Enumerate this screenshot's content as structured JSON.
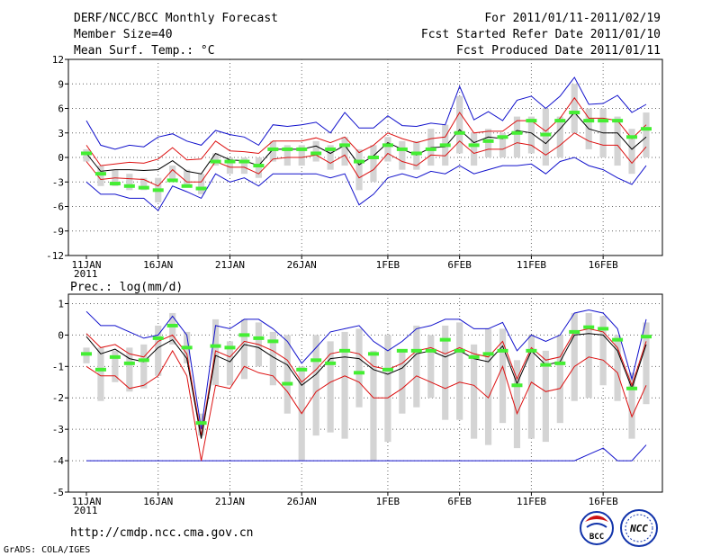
{
  "header": {
    "title": "DERF/NCC/BCC Monthly Forecast",
    "member_size": "Member Size=40",
    "variable": "Mean Surf. Temp.: °C",
    "period": "For 2011/01/11-2011/02/19",
    "started": "Fcst Started Refer Date 2011/01/10",
    "produced": "Fcst Produced Date 2011/01/11"
  },
  "footer": {
    "url": "http://cmdp.ncc.cma.gov.cn",
    "grads": "GrADS: COLA/IGES",
    "logo_bcc": "BCC",
    "logo_ncc": "NCC"
  },
  "colors": {
    "mean": "#000000",
    "band": "#dd1111",
    "range": "#1111cc",
    "box": "#d4d4d4",
    "marker": "#44ee33"
  },
  "chart_data": [
    {
      "type": "line",
      "title": "Mean Surf. Temp.: °C",
      "x": [
        "1/11",
        "1/12",
        "1/13",
        "1/14",
        "1/15",
        "1/16",
        "1/17",
        "1/18",
        "1/19",
        "1/20",
        "1/21",
        "1/22",
        "1/23",
        "1/24",
        "1/25",
        "1/26",
        "1/27",
        "1/28",
        "1/29",
        "1/30",
        "1/31",
        "2/1",
        "2/2",
        "2/3",
        "2/4",
        "2/5",
        "2/6",
        "2/7",
        "2/8",
        "2/9",
        "2/10",
        "2/11",
        "2/12",
        "2/13",
        "2/14",
        "2/15",
        "2/16",
        "2/17",
        "2/18",
        "2/19"
      ],
      "xticks": [
        {
          "i": 0,
          "label": "11JAN"
        },
        {
          "i": 5,
          "label": "16JAN"
        },
        {
          "i": 10,
          "label": "21JAN"
        },
        {
          "i": 15,
          "label": "26JAN"
        },
        {
          "i": 21,
          "label": "1FEB"
        },
        {
          "i": 26,
          "label": "6FEB"
        },
        {
          "i": 31,
          "label": "11FEB"
        },
        {
          "i": 36,
          "label": "16FEB"
        }
      ],
      "xyear": "2011",
      "ylim": [
        -12,
        12
      ],
      "yticks": [
        -12,
        -9,
        -6,
        -3,
        0,
        3,
        6,
        9,
        12
      ],
      "series": [
        {
          "name": "max",
          "values": [
            4.5,
            1.5,
            1.0,
            1.5,
            1.3,
            2.5,
            2.9,
            2.0,
            1.5,
            3.3,
            2.8,
            2.5,
            1.5,
            4.0,
            3.8,
            4.0,
            4.3,
            3.0,
            5.5,
            3.6,
            3.6,
            5.1,
            3.9,
            3.8,
            4.2,
            4.0,
            8.7,
            4.6,
            5.6,
            4.5,
            7.0,
            7.5,
            6.0,
            7.5,
            9.8,
            6.5,
            6.6,
            7.6,
            5.5,
            6.5
          ]
        },
        {
          "name": "upper",
          "values": [
            1.5,
            -1.0,
            -0.8,
            -0.6,
            -0.7,
            -0.2,
            1.2,
            -0.3,
            -0.2,
            2.0,
            0.8,
            0.7,
            0.5,
            2.0,
            2.0,
            2.0,
            2.4,
            1.8,
            2.5,
            0.6,
            1.5,
            3.0,
            2.3,
            1.8,
            2.3,
            2.5,
            5.5,
            3.0,
            3.2,
            3.2,
            4.5,
            4.5,
            3.2,
            4.8,
            7.3,
            4.8,
            4.8,
            4.5,
            2.3,
            4.0
          ]
        },
        {
          "name": "mean",
          "values": [
            0.5,
            -1.7,
            -1.5,
            -1.5,
            -1.6,
            -1.5,
            -0.4,
            -1.7,
            -2.0,
            0.5,
            -0.3,
            -0.4,
            -1.0,
            1.0,
            1.0,
            1.0,
            1.4,
            0.5,
            1.5,
            -0.9,
            0.2,
            1.8,
            1.0,
            0.3,
            1.2,
            1.3,
            3.4,
            1.8,
            2.5,
            2.3,
            3.3,
            3.0,
            1.7,
            3.5,
            5.5,
            3.5,
            3.0,
            3.0,
            1.0,
            2.5
          ]
        },
        {
          "name": "lower",
          "values": [
            -0.5,
            -2.7,
            -2.5,
            -2.6,
            -2.7,
            -3.5,
            -1.5,
            -3.0,
            -3.0,
            -0.5,
            -1.2,
            -1.2,
            -2.0,
            -0.2,
            0.0,
            0.0,
            0.3,
            -0.7,
            0.3,
            -2.5,
            -1.5,
            0.5,
            -0.5,
            -1.0,
            0.3,
            0.2,
            2.0,
            0.5,
            1.0,
            1.0,
            1.8,
            1.5,
            0.3,
            1.5,
            3.0,
            2.0,
            1.5,
            1.5,
            -0.7,
            1.3
          ]
        },
        {
          "name": "min",
          "values": [
            -3.0,
            -4.5,
            -4.5,
            -5.0,
            -5.0,
            -6.5,
            -3.5,
            -4.2,
            -5.0,
            -2.0,
            -3.0,
            -2.5,
            -3.5,
            -2.0,
            -2.0,
            -2.0,
            -2.0,
            -2.5,
            -2.0,
            -5.8,
            -4.5,
            -2.5,
            -2.0,
            -2.5,
            -1.7,
            -2.0,
            -1.0,
            -2.0,
            -1.5,
            -1.0,
            -1.0,
            -0.8,
            -2.0,
            -0.5,
            0.0,
            -1.0,
            -1.5,
            -2.5,
            -3.3,
            -1.0
          ]
        },
        {
          "name": "box_low",
          "values": [
            -0.5,
            -3.5,
            -3.5,
            -4.0,
            -4.0,
            -5.5,
            -3.0,
            -3.5,
            -4.5,
            -1.0,
            -2.0,
            -2.0,
            -2.5,
            -0.5,
            -1.0,
            -1.0,
            -0.5,
            -1.5,
            -1.0,
            -4.0,
            -3.0,
            -0.5,
            -1.5,
            -1.5,
            -1.0,
            -1.0,
            0.5,
            -1.0,
            0.0,
            0.0,
            0.0,
            0.5,
            -1.0,
            0.0,
            3.0,
            1.0,
            0.0,
            -1.0,
            -2.0,
            0.0
          ]
        },
        {
          "name": "box_high",
          "values": [
            1.0,
            -1.0,
            -1.5,
            -2.0,
            -2.5,
            -2.5,
            -1.0,
            -1.5,
            -2.0,
            0.5,
            0.0,
            0.0,
            0.0,
            2.0,
            1.5,
            1.5,
            2.0,
            1.5,
            2.5,
            1.0,
            1.5,
            2.5,
            2.0,
            2.0,
            3.5,
            4.0,
            7.5,
            3.0,
            3.5,
            3.0,
            5.0,
            5.0,
            6.0,
            5.0,
            9.0,
            6.0,
            6.0,
            5.0,
            3.5,
            5.5
          ]
        },
        {
          "name": "marker",
          "values": [
            0.5,
            -2.0,
            -3.2,
            -3.5,
            -3.7,
            -4.0,
            -2.8,
            -3.5,
            -3.8,
            -0.5,
            -0.5,
            -0.5,
            -1.0,
            1.0,
            1.0,
            1.0,
            0.5,
            1.0,
            1.5,
            -0.5,
            0.0,
            1.5,
            1.0,
            0.5,
            1.0,
            1.5,
            3.0,
            1.5,
            2.0,
            2.5,
            3.0,
            4.5,
            2.8,
            4.5,
            5.5,
            4.5,
            4.5,
            4.5,
            2.5,
            3.5
          ]
        }
      ]
    },
    {
      "type": "line",
      "title": "Prec.: log(mm/d)",
      "x": [
        "1/11",
        "1/12",
        "1/13",
        "1/14",
        "1/15",
        "1/16",
        "1/17",
        "1/18",
        "1/19",
        "1/20",
        "1/21",
        "1/22",
        "1/23",
        "1/24",
        "1/25",
        "1/26",
        "1/27",
        "1/28",
        "1/29",
        "1/30",
        "1/31",
        "2/1",
        "2/2",
        "2/3",
        "2/4",
        "2/5",
        "2/6",
        "2/7",
        "2/8",
        "2/9",
        "2/10",
        "2/11",
        "2/12",
        "2/13",
        "2/14",
        "2/15",
        "2/16",
        "2/17",
        "2/18",
        "2/19"
      ],
      "xticks": [
        {
          "i": 0,
          "label": "11JAN"
        },
        {
          "i": 5,
          "label": "16JAN"
        },
        {
          "i": 10,
          "label": "21JAN"
        },
        {
          "i": 15,
          "label": "26JAN"
        },
        {
          "i": 21,
          "label": "1FEB"
        },
        {
          "i": 26,
          "label": "6FEB"
        },
        {
          "i": 31,
          "label": "11FEB"
        },
        {
          "i": 36,
          "label": "16FEB"
        }
      ],
      "xyear": "2011",
      "ylim": [
        -5,
        1.3
      ],
      "yticks": [
        -5,
        -4,
        -3,
        -2,
        -1,
        0,
        1
      ],
      "series": [
        {
          "name": "max",
          "values": [
            0.75,
            0.3,
            0.3,
            0.1,
            -0.1,
            0.0,
            0.6,
            0.0,
            -3.0,
            0.3,
            0.2,
            0.5,
            0.5,
            0.2,
            -0.2,
            -0.9,
            -0.4,
            0.1,
            0.2,
            0.3,
            -0.2,
            -0.5,
            -0.2,
            0.2,
            0.3,
            0.5,
            0.5,
            0.2,
            0.2,
            0.4,
            -0.5,
            0.0,
            -0.2,
            0.0,
            0.7,
            0.8,
            0.7,
            0.2,
            -1.4,
            0.5
          ]
        },
        {
          "name": "upper",
          "values": [
            0.05,
            -0.4,
            -0.3,
            -0.6,
            -0.7,
            -0.2,
            0.0,
            -0.6,
            -3.2,
            -0.5,
            -0.7,
            -0.2,
            -0.3,
            -0.5,
            -0.8,
            -1.5,
            -1.1,
            -0.6,
            -0.5,
            -0.6,
            -1.0,
            -1.1,
            -0.9,
            -0.5,
            -0.4,
            -0.6,
            -0.4,
            -0.6,
            -0.7,
            -0.2,
            -1.4,
            -0.4,
            -0.8,
            -0.7,
            0.1,
            0.2,
            0.1,
            -0.4,
            -1.6,
            -0.2
          ]
        },
        {
          "name": "mean",
          "values": [
            -0.05,
            -0.6,
            -0.45,
            -0.75,
            -0.85,
            -0.4,
            -0.15,
            -0.75,
            -3.3,
            -0.65,
            -0.85,
            -0.3,
            -0.4,
            -0.7,
            -0.95,
            -1.6,
            -1.25,
            -0.75,
            -0.7,
            -0.75,
            -1.1,
            -1.25,
            -1.05,
            -0.6,
            -0.5,
            -0.7,
            -0.5,
            -0.75,
            -0.85,
            -0.35,
            -1.55,
            -0.5,
            -0.95,
            -0.85,
            0.0,
            0.05,
            0.0,
            -0.5,
            -1.7,
            -0.3
          ]
        },
        {
          "name": "lower",
          "values": [
            -1.0,
            -1.3,
            -1.3,
            -1.7,
            -1.6,
            -1.3,
            -0.5,
            -1.3,
            -4.0,
            -1.6,
            -1.7,
            -1.0,
            -1.2,
            -1.3,
            -1.8,
            -2.5,
            -1.8,
            -1.5,
            -1.3,
            -1.5,
            -2.0,
            -2.0,
            -1.7,
            -1.3,
            -1.5,
            -1.7,
            -1.5,
            -1.6,
            -2.0,
            -1.0,
            -2.5,
            -1.5,
            -1.8,
            -1.7,
            -1.0,
            -0.7,
            -0.8,
            -1.2,
            -2.6,
            -1.6
          ]
        },
        {
          "name": "min",
          "values": [
            -4.0,
            -4.0,
            -4.0,
            -4.0,
            -4.0,
            -4.0,
            -4.0,
            -4.0,
            -4.0,
            -4.0,
            -4.0,
            -4.0,
            -4.0,
            -4.0,
            -4.0,
            -4.0,
            -4.0,
            -4.0,
            -4.0,
            -4.0,
            -4.0,
            -4.0,
            -4.0,
            -4.0,
            -4.0,
            -4.0,
            -4.0,
            -4.0,
            -4.0,
            -4.0,
            -4.0,
            -4.0,
            -4.0,
            -4.0,
            -4.0,
            -3.8,
            -3.6,
            -4.0,
            -4.0,
            -3.5
          ]
        },
        {
          "name": "box_low",
          "values": [
            -0.9,
            -2.1,
            -1.5,
            -1.8,
            -1.7,
            -1.3,
            -0.3,
            -0.9,
            -3.2,
            -1.6,
            -1.6,
            -1.4,
            -1.0,
            -1.6,
            -2.5,
            -4.0,
            -3.2,
            -3.1,
            -3.3,
            -2.3,
            -4.0,
            -3.4,
            -2.5,
            -2.3,
            -2.0,
            -2.7,
            -2.7,
            -3.3,
            -3.5,
            -2.8,
            -3.6,
            -3.3,
            -3.4,
            -2.8,
            -2.1,
            -2.0,
            -1.6,
            -2.1,
            -3.3,
            -2.2
          ]
        },
        {
          "name": "box_high",
          "values": [
            -0.4,
            -0.4,
            -0.5,
            -0.4,
            -0.3,
            0.3,
            0.7,
            0.1,
            -2.5,
            0.5,
            -0.2,
            0.5,
            0.4,
            0.1,
            0.0,
            -1.0,
            0.0,
            -0.2,
            0.1,
            0.2,
            -0.5,
            0.0,
            -0.5,
            0.3,
            0.0,
            0.3,
            0.4,
            -0.3,
            0.2,
            0.2,
            -0.8,
            0.0,
            -0.5,
            0.0,
            0.7,
            0.7,
            0.6,
            0.0,
            -1.2,
            0.4
          ]
        },
        {
          "name": "marker",
          "values": [
            -0.6,
            -1.1,
            -0.7,
            -0.9,
            -0.8,
            -0.1,
            0.3,
            -0.4,
            -2.8,
            -0.35,
            -0.4,
            0.0,
            -0.1,
            -0.2,
            -1.55,
            -1.1,
            -0.8,
            -0.9,
            -0.5,
            -1.2,
            -0.6,
            -1.1,
            -0.5,
            -0.5,
            -0.5,
            -0.15,
            -0.5,
            -0.7,
            -0.6,
            -0.5,
            -1.6,
            -0.5,
            -0.95,
            -0.9,
            0.1,
            0.25,
            0.2,
            -0.15,
            -1.7,
            -0.05
          ]
        }
      ]
    }
  ]
}
